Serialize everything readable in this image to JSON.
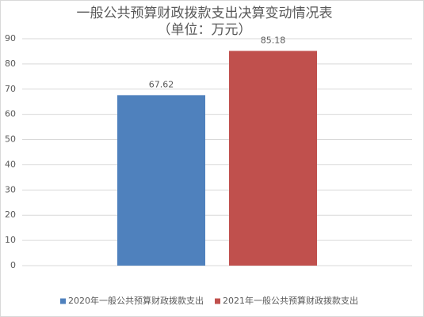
{
  "chart_data": {
    "type": "bar",
    "title": "一般公共预算财政拨款支出决算变动情况表",
    "subtitle": "（单位：万元）",
    "categories": [
      null
    ],
    "series": [
      {
        "name": "2020年一般公共预算财政拨款支出",
        "color": "#4f81bd",
        "values": [
          67.62
        ]
      },
      {
        "name": "2021年一般公共预算财政拨款支出",
        "color": "#c0504d",
        "values": [
          85.18
        ]
      }
    ],
    "ylim": [
      0,
      90
    ],
    "yticks": [
      0,
      10,
      20,
      30,
      40,
      50,
      60,
      70,
      80,
      90
    ],
    "grid": true,
    "legend": "bottom"
  }
}
